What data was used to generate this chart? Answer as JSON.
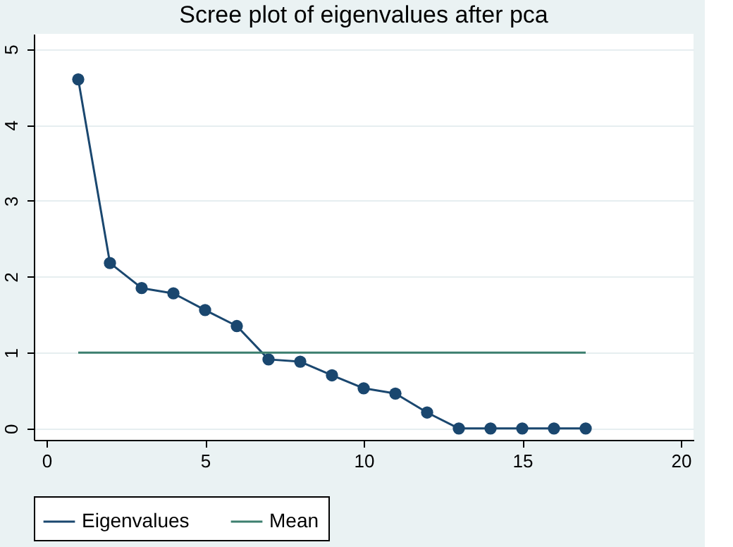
{
  "chart_data": {
    "type": "line",
    "title": "Scree plot of eigenvalues after pca",
    "series": [
      {
        "name": "Eigenvalues",
        "color": "#1a476f",
        "marker": "circle",
        "x": [
          1,
          2,
          3,
          4,
          5,
          6,
          7,
          8,
          9,
          10,
          11,
          12,
          13,
          14,
          15,
          16,
          17
        ],
        "values": [
          4.6,
          2.18,
          1.85,
          1.78,
          1.56,
          1.35,
          0.91,
          0.88,
          0.7,
          0.53,
          0.46,
          0.21,
          0,
          0,
          0,
          0,
          0
        ]
      },
      {
        "name": "Mean",
        "color": "#3d7f6f",
        "marker": "none",
        "x": [
          1,
          17
        ],
        "values": [
          1,
          1
        ]
      }
    ],
    "xlim": [
      -0.4,
      20.4
    ],
    "xticks": [
      0,
      5,
      10,
      15,
      20
    ],
    "ylim": [
      -0.15,
      5.2
    ],
    "yticks": [
      0,
      1,
      2,
      3,
      4,
      5
    ],
    "grid": "y",
    "legend": "bottom",
    "line_style": "solid"
  }
}
